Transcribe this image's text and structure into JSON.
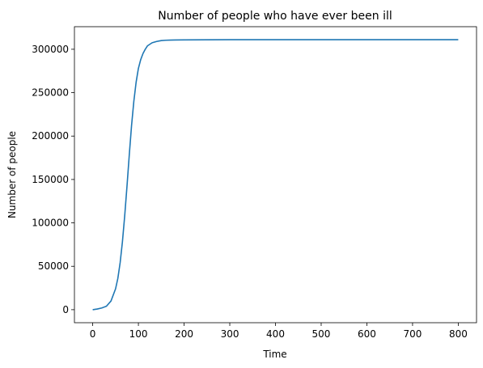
{
  "chart_data": {
    "type": "line",
    "title": "Number of people who have ever been ill",
    "xlabel": "Time",
    "ylabel": "Number of people",
    "xlim": [
      -40,
      840
    ],
    "ylim": [
      -15000,
      326000
    ],
    "xticks": [
      0,
      100,
      200,
      300,
      400,
      500,
      600,
      700,
      800
    ],
    "yticks": [
      0,
      50000,
      100000,
      150000,
      200000,
      250000,
      300000
    ],
    "grid": false,
    "legend": "none",
    "series": [
      {
        "color": "#1f77b4",
        "x": [
          0,
          10,
          20,
          30,
          40,
          50,
          55,
          60,
          65,
          70,
          75,
          80,
          85,
          90,
          95,
          100,
          105,
          110,
          115,
          120,
          130,
          140,
          150,
          160,
          170,
          180,
          200,
          250,
          300,
          400,
          500,
          600,
          700,
          800
        ],
        "y": [
          0,
          800,
          2000,
          4000,
          10000,
          24000,
          36000,
          54000,
          78000,
          108000,
          142000,
          178000,
          212000,
          240000,
          262000,
          278000,
          288000,
          295000,
          300000,
          304000,
          307500,
          309000,
          310000,
          310400,
          310600,
          310700,
          310800,
          310900,
          311000,
          311000,
          311000,
          311000,
          311000,
          311000
        ]
      }
    ]
  }
}
